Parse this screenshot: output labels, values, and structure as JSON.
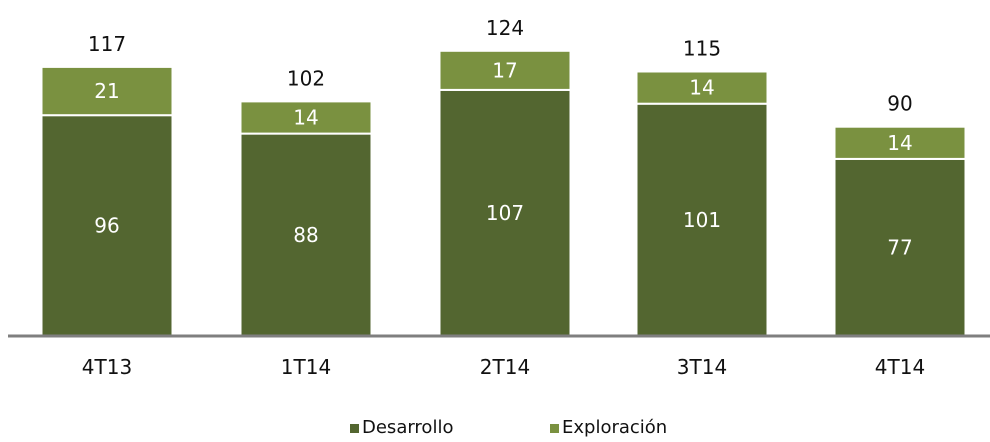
{
  "chart_data": {
    "type": "bar",
    "stacked": true,
    "categories": [
      "4T13",
      "1T14",
      "2T14",
      "3T14",
      "4T14"
    ],
    "series": [
      {
        "name": "Desarrollo",
        "values": [
          96,
          88,
          107,
          101,
          77
        ],
        "color": "#536630"
      },
      {
        "name": "Exploración",
        "values": [
          21,
          14,
          17,
          14,
          14
        ],
        "color": "#7a9140"
      }
    ],
    "totals": [
      117,
      102,
      124,
      115,
      90
    ],
    "ylim": [
      0,
      135
    ],
    "grid": false,
    "legend_position": "bottom"
  }
}
